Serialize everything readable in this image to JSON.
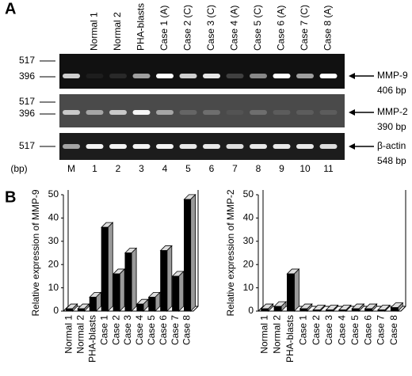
{
  "panel_labels": [
    "A",
    "B"
  ],
  "gel": {
    "lane_labels": [
      "Normal 1",
      "Normal 2",
      "PHA-blasts",
      "Case 1 (A)",
      "Case 2 (C)",
      "Case 3 (C)",
      "Case 4 (A)",
      "Case 5 (C)",
      "Case 6 (A)",
      "Case 7 (C)",
      "Case 8 (A)"
    ],
    "lane_numbers": [
      "M",
      "1",
      "2",
      "3",
      "4",
      "5",
      "6",
      "7",
      "8",
      "9",
      "10",
      "11"
    ],
    "bp_unit": "(bp)",
    "blots": [
      {
        "name": "MMP-9",
        "size": "406 bp",
        "ladder": [
          "517",
          "396"
        ]
      },
      {
        "name": "MMP-2",
        "size": "390 bp",
        "ladder": [
          "517",
          "396"
        ]
      },
      {
        "name": "β-actin",
        "size": "548 bp",
        "ladder": [
          "517"
        ]
      }
    ]
  },
  "chart_data": [
    {
      "type": "bar",
      "y_label": "Relative expression of MMP-9",
      "categories": [
        "Normal 1",
        "Normal 2",
        "PHA-blasts",
        "Case 1",
        "Case 2",
        "Case 3",
        "Case 4",
        "Case 5",
        "Case 6",
        "Case 7",
        "Case 8"
      ],
      "values": [
        1,
        1,
        6,
        36,
        16,
        25,
        3,
        6,
        26,
        15,
        48
      ],
      "color": "#000000",
      "ylim": [
        0,
        50
      ],
      "yticks": [
        0,
        10,
        20,
        30,
        40,
        50
      ]
    },
    {
      "type": "bar",
      "y_label": "Relative expression of MMP-2",
      "categories": [
        "Normal 1",
        "Normal 2",
        "PHA-blasts",
        "Case 1",
        "Case 2",
        "Case 3",
        "Case 4",
        "Case 5",
        "Case 6",
        "Case 7",
        "Case 8"
      ],
      "values": [
        1,
        2,
        16,
        1,
        0.5,
        0.5,
        0.5,
        1,
        1,
        0.5,
        1.5
      ],
      "color": "#000000",
      "ylim": [
        0,
        50
      ],
      "yticks": [
        0,
        10,
        20,
        30,
        40,
        50
      ]
    }
  ]
}
